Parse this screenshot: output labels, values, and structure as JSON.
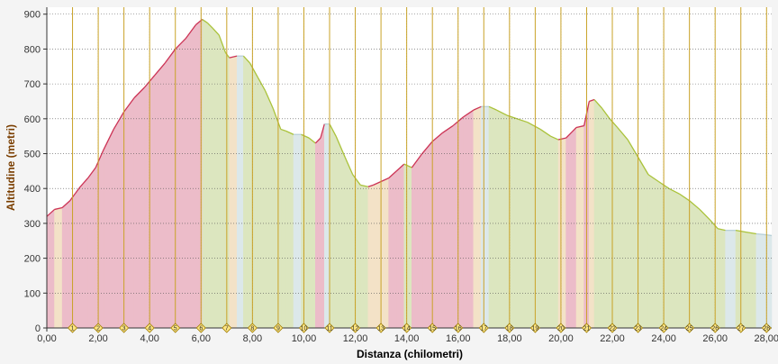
{
  "chart_data": {
    "type": "area",
    "title": "",
    "xlabel": "Distanza (chilometri)",
    "ylabel": "Altitudine (metri)",
    "xlim": [
      0,
      28.2
    ],
    "ylim": [
      0,
      920
    ],
    "grid": true,
    "legend": "none",
    "x_ticks": [
      "0,00",
      "2,00",
      "4,00",
      "6,00",
      "8,00",
      "10,00",
      "12,00",
      "14,00",
      "16,00",
      "18,00",
      "20,00",
      "22,00",
      "24,00",
      "26,00",
      "28,00"
    ],
    "y_ticks": [
      "0",
      "100",
      "200",
      "300",
      "400",
      "500",
      "600",
      "700",
      "800",
      "900"
    ],
    "km_markers": [
      "1",
      "2",
      "3",
      "4",
      "5",
      "6",
      "7",
      "8",
      "9",
      "10",
      "11",
      "12",
      "13",
      "14",
      "15",
      "16",
      "17",
      "18",
      "19",
      "20",
      "21",
      "22",
      "23",
      "24",
      "25",
      "26",
      "27",
      "28"
    ],
    "slope_colors": {
      "up": "#ecbcc9",
      "down": "#dce6bf",
      "flat": "#dce8ea",
      "gentle_up": "#f3e2c7"
    },
    "line_colors": {
      "up": "#cc3355",
      "down": "#aac23a",
      "flat": "#b8d0d8"
    },
    "series": [
      {
        "x": [
          0.0,
          0.3,
          0.6,
          0.9,
          1.1,
          1.3,
          1.6,
          1.9,
          2.2,
          2.6,
          3.0,
          3.4,
          3.8,
          4.2,
          4.6,
          5.0,
          5.4,
          5.8,
          6.05,
          6.25,
          6.45,
          6.7,
          6.95,
          7.1,
          7.4,
          7.65,
          7.9,
          8.2,
          8.5,
          8.8,
          9.1,
          9.3,
          9.6,
          9.9,
          10.2,
          10.45,
          10.65,
          10.8,
          11.0,
          11.25,
          11.6,
          11.9,
          12.2,
          12.5,
          12.7,
          13.0,
          13.3,
          13.6,
          13.9,
          14.2,
          14.6,
          15.0,
          15.4,
          15.8,
          16.2,
          16.6,
          16.9,
          17.2,
          17.5,
          17.9,
          18.3,
          18.7,
          19.2,
          19.6,
          19.9,
          20.2,
          20.6,
          20.9,
          21.1,
          21.3,
          21.6,
          21.9,
          22.2,
          22.6,
          23.0,
          23.4,
          23.8,
          24.2,
          24.6,
          25.0,
          25.4,
          25.8,
          26.1,
          26.4,
          26.8,
          27.2,
          27.6,
          27.9,
          28.2
        ],
        "y": [
          320,
          340,
          345,
          365,
          385,
          405,
          430,
          460,
          510,
          570,
          620,
          660,
          690,
          725,
          760,
          800,
          830,
          870,
          885,
          875,
          860,
          840,
          790,
          775,
          780,
          780,
          760,
          720,
          680,
          630,
          570,
          565,
          555,
          555,
          545,
          530,
          545,
          585,
          585,
          550,
          490,
          440,
          410,
          405,
          410,
          420,
          430,
          450,
          470,
          460,
          500,
          535,
          560,
          580,
          605,
          625,
          635,
          635,
          625,
          610,
          600,
          590,
          570,
          550,
          540,
          545,
          575,
          580,
          650,
          655,
          630,
          600,
          575,
          540,
          490,
          440,
          420,
          400,
          385,
          365,
          340,
          310,
          285,
          280,
          280,
          275,
          270,
          268,
          265
        ]
      }
    ]
  }
}
